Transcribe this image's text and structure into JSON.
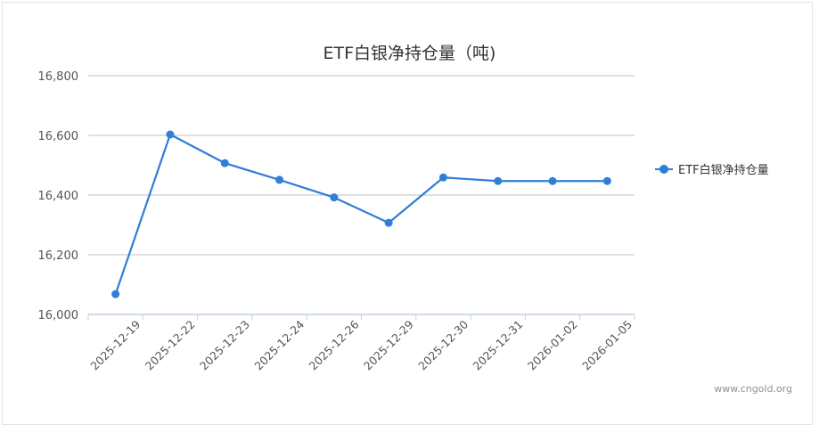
{
  "chart_data": {
    "type": "line",
    "title": "ETF白银净持仓量（吨)",
    "xlabel": "",
    "ylabel": "",
    "categories": [
      "2025-12-19",
      "2025-12-22",
      "2025-12-23",
      "2025-12-24",
      "2025-12-26",
      "2025-12-29",
      "2025-12-30",
      "2025-12-31",
      "2026-01-02",
      "2026-01-05"
    ],
    "series": [
      {
        "name": "ETF白银净持仓量",
        "color": "#2f7ed8",
        "values": [
          16068,
          16603,
          16507,
          16451,
          16392,
          16307,
          16459,
          16447,
          16447,
          16447
        ]
      }
    ],
    "ylim": [
      16000,
      16800
    ],
    "yticks": [
      16000,
      16200,
      16400,
      16600,
      16800
    ],
    "ytick_labels": [
      "16,000",
      "16,200",
      "16,400",
      "16,600",
      "16,800"
    ],
    "grid": true,
    "legend_position": "right"
  },
  "title": "ETF白银净持仓量（吨)",
  "legend": {
    "label": "ETF白银净持仓量"
  },
  "credit": "www.cngold.org"
}
